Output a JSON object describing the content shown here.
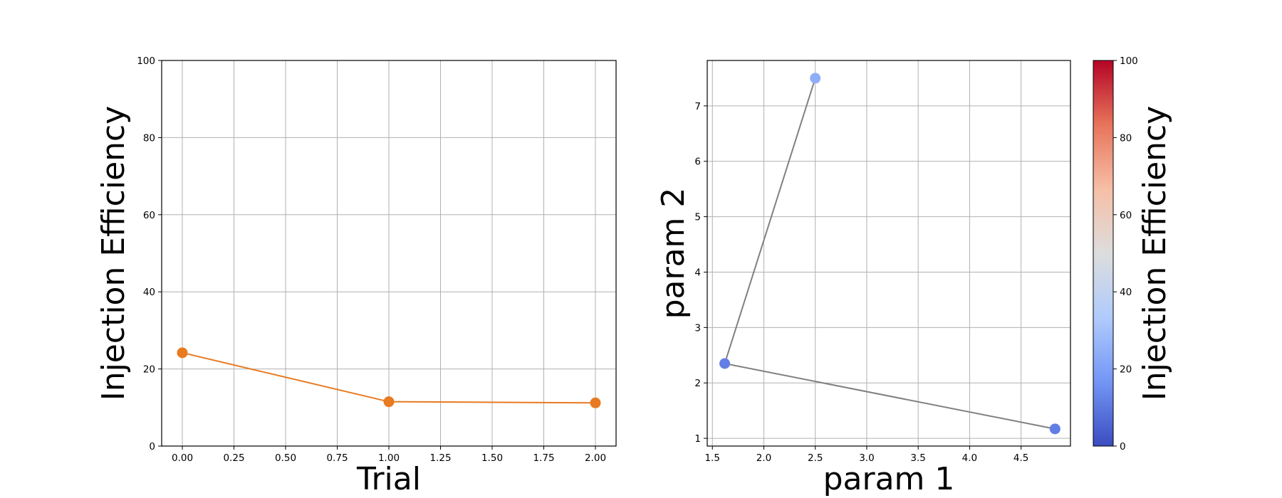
{
  "chart_data": [
    {
      "type": "line",
      "xlabel": "Trial",
      "ylabel": "Injection Efficiency",
      "xlim": [
        -0.1,
        2.1
      ],
      "ylim": [
        0,
        100
      ],
      "xticks": [
        "0.00",
        "0.25",
        "0.50",
        "0.75",
        "1.00",
        "1.25",
        "1.50",
        "1.75",
        "2.00"
      ],
      "yticks": [
        "0",
        "20",
        "40",
        "60",
        "80",
        "100"
      ],
      "grid": true,
      "series": [
        {
          "x": [
            0,
            1,
            2
          ],
          "y": [
            24.2,
            11.5,
            11.2
          ],
          "color": "#e87a21"
        }
      ]
    },
    {
      "type": "scatter",
      "xlabel": "param 1",
      "ylabel": "param 2",
      "xlim": [
        1.45,
        4.98
      ],
      "ylim": [
        0.86,
        7.82
      ],
      "xticks": [
        "1.5",
        "2.0",
        "2.5",
        "3.0",
        "3.5",
        "4.0",
        "4.5"
      ],
      "yticks": [
        "1",
        "2",
        "3",
        "4",
        "5",
        "6",
        "7"
      ],
      "grid": true,
      "path_color": "#808080",
      "points": [
        {
          "x": 2.5,
          "y": 7.5,
          "value": 24.2
        },
        {
          "x": 1.62,
          "y": 2.35,
          "value": 11.5
        },
        {
          "x": 4.83,
          "y": 1.17,
          "value": 11.2
        }
      ],
      "colorbar": {
        "label": "Injection Efficiency",
        "range": [
          0,
          100
        ],
        "ticks": [
          "0",
          "20",
          "40",
          "60",
          "80",
          "100"
        ],
        "colormap": "coolwarm",
        "colors": [
          "#3b4cc0",
          "#7396f5",
          "#b0cbfc",
          "#dddddd",
          "#f6bfa6",
          "#e7745b",
          "#b40426"
        ]
      }
    }
  ]
}
